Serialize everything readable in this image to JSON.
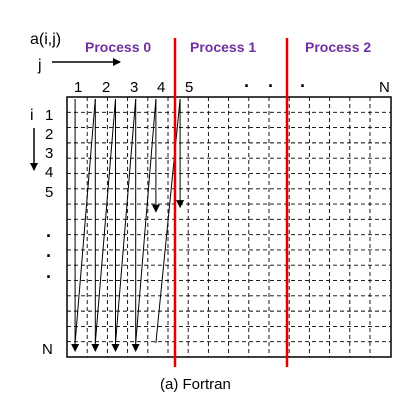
{
  "array_label": "a(i,j)",
  "j_axis_label": "j",
  "i_axis_label": "i",
  "processes": [
    "Process 0",
    "Process 1",
    "Process 2"
  ],
  "column_labels": [
    "1",
    "2",
    "3",
    "4",
    "5",
    "·",
    "·",
    "·",
    "N"
  ],
  "row_labels": [
    "1",
    "2",
    "3",
    "4",
    "5",
    "·",
    "·",
    "·",
    "N"
  ],
  "caption": "(a)  Fortran",
  "colors": {
    "process_text": "#7030a0",
    "partition_line": "#e00000",
    "grid": "#000000"
  }
}
